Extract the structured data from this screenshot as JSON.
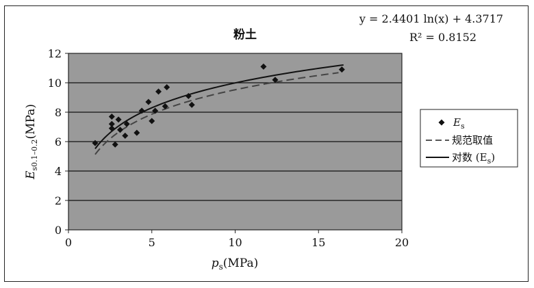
{
  "chart_data": {
    "type": "scatter",
    "title": "粉土",
    "equation": "y = 2.4401 ln(x) + 4.3717",
    "r_squared": "R² = 0.8152",
    "xlabel": "ps(MPa)",
    "xlabel_main": "p",
    "xlabel_sub": "s",
    "xlabel_unit": "(MPa)",
    "ylabel": "Es0.1–0.2(MPa)",
    "ylabel_main": "E",
    "ylabel_sub": "s0.1–0.2",
    "ylabel_unit": "(MPa)",
    "xlim": [
      0,
      20
    ],
    "ylim": [
      0,
      12
    ],
    "xticks": [
      0,
      5,
      10,
      15,
      20
    ],
    "yticks": [
      0,
      2,
      4,
      6,
      8,
      10,
      12
    ],
    "grid": "horizontal",
    "legend_position": "right",
    "plot_background": "#9a9a9a",
    "legend": [
      {
        "name": "Es",
        "main": "E",
        "sub": "s",
        "style": "marker"
      },
      {
        "name": "规范取值",
        "main": "规范取值",
        "sub": "",
        "style": "dashed"
      },
      {
        "name": "对数 (Es)",
        "main": "对数 (E",
        "sub": "s",
        "tail": ")",
        "style": "solid"
      }
    ],
    "series": [
      {
        "name": "Es",
        "kind": "scatter",
        "points": [
          [
            1.6,
            5.9
          ],
          [
            2.6,
            7.7
          ],
          [
            2.6,
            7.2
          ],
          [
            2.6,
            6.9
          ],
          [
            2.8,
            5.8
          ],
          [
            3.0,
            7.5
          ],
          [
            3.1,
            6.8
          ],
          [
            3.4,
            6.4
          ],
          [
            3.5,
            7.2
          ],
          [
            4.1,
            6.6
          ],
          [
            4.4,
            8.1
          ],
          [
            4.8,
            8.7
          ],
          [
            5.0,
            7.4
          ],
          [
            5.2,
            8.1
          ],
          [
            5.4,
            9.4
          ],
          [
            5.8,
            8.4
          ],
          [
            5.9,
            9.7
          ],
          [
            7.2,
            9.1
          ],
          [
            7.4,
            8.5
          ],
          [
            11.7,
            11.1
          ],
          [
            12.4,
            10.2
          ],
          [
            16.4,
            10.9
          ]
        ]
      },
      {
        "name": "规范取值",
        "kind": "dashed-curve",
        "x_range": [
          1.6,
          16.2
        ],
        "model": "log",
        "a": 2.4,
        "b": 4.0
      },
      {
        "name": "对数 (Es)",
        "kind": "solid-curve",
        "x_range": [
          1.6,
          16.5
        ],
        "model": "log",
        "a": 2.4401,
        "b": 4.3717
      }
    ]
  }
}
